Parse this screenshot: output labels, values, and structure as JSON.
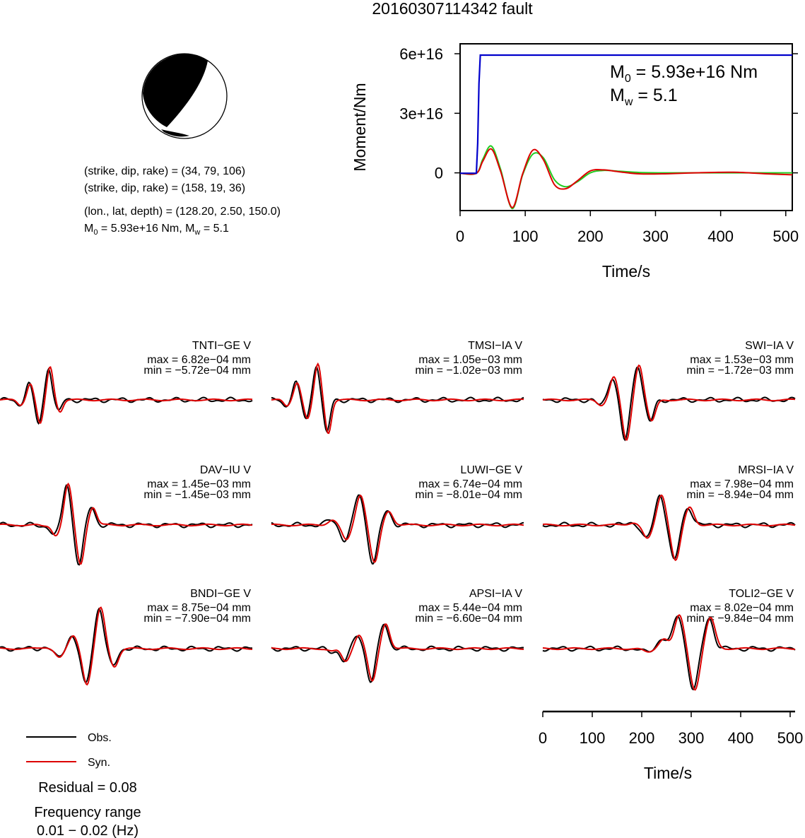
{
  "title": "20160307114342 fault",
  "colors": {
    "observed": "#000000",
    "synthetic": "#dd0000",
    "moment_rate": "#22cc22",
    "cumulative_moment": "#0000cc"
  },
  "mechanism": {
    "planes": [
      "(strike, dip, rake) = (34, 79, 106)",
      "(strike, dip, rake) = (158, 19, 36)"
    ],
    "location": "(lon., lat, depth) = (128.20, 2.50, 150.0)",
    "moment_line": {
      "m0_label": "M",
      "m0_sub": "0",
      "m0_value": " = 5.93e+16 Nm, M",
      "mw_sub": "w",
      "mw_value": " = 5.1"
    }
  },
  "moment_box": {
    "m0_label": "M",
    "m0_sub": "0",
    "m0_value": " = 5.93e+16 Nm",
    "mw_label": "M",
    "mw_sub": "w",
    "mw_value": " = 5.1"
  },
  "legend": {
    "obs": "Obs.",
    "syn": "Syn."
  },
  "residual": "Residual = 0.08",
  "frequency": {
    "label": "Frequency range",
    "value": "0.01 − 0.02 (Hz)"
  },
  "chart_data": [
    {
      "type": "line",
      "xlabel": "Time/s",
      "ylabel": "Moment/Nm",
      "xlim": [
        0,
        510
      ],
      "ylim": [
        -1.9e+16,
        6.5e+16
      ],
      "xticks": [
        0,
        100,
        200,
        300,
        400,
        500
      ],
      "yticks": [
        {
          "v": 0,
          "label": "0"
        },
        {
          "v": 3e+16,
          "label": "3e+16"
        },
        {
          "v": 6e+16,
          "label": "6e+16"
        }
      ],
      "series": [
        {
          "key": "cumulative_moment",
          "x": [
            0,
            25,
            27,
            29,
            31,
            510
          ],
          "y": [
            -200000000000000.0,
            -200000000000000.0,
            1.5e+16,
            4.5e+16,
            5.93e+16,
            5.93e+16
          ]
        },
        {
          "key": "moment_rate_a",
          "x": [
            0,
            25,
            35,
            48,
            62,
            80,
            96,
            112,
            128,
            145,
            162,
            180,
            200,
            220,
            245,
            275,
            310,
            360,
            420,
            470,
            510
          ],
          "y": [
            -200000000000000.0,
            -200000000000000.0,
            6000000000000000.0,
            1.2e+16,
            1000000000000000.0,
            -1.75e+16,
            -500000000000000.0,
            1.15e+16,
            6500000000000000.0,
            -6000000000000000.0,
            -8000000000000000.0,
            -4000000000000000.0,
            1000000000000000.0,
            1500000000000000.0,
            500000000000000.0,
            -500000000000000.0,
            -500000000000000.0,
            0.0,
            300000000000000.0,
            -500000000000000.0,
            -1000000000000000.0
          ]
        },
        {
          "key": "moment_rate_b",
          "x": [
            0,
            25,
            35,
            48,
            62,
            80,
            96,
            112,
            128,
            145,
            162,
            180,
            200,
            220,
            245,
            275,
            310,
            360,
            420,
            470,
            510
          ],
          "y": [
            -200000000000000.0,
            -200000000000000.0,
            7000000000000000.0,
            1.35e+16,
            2000000000000000.0,
            -1.8e+16,
            -1000000000000000.0,
            9500000000000000.0,
            7500000000000000.0,
            -3500000000000000.0,
            -7000000000000000.0,
            -4500000000000000.0,
            0.0,
            1200000000000000.0,
            800000000000000.0,
            200000000000000.0,
            0.0,
            0.0,
            0.0,
            0.0,
            0.0
          ]
        }
      ]
    },
    {
      "type": "line",
      "description_note": "waveform fits",
      "xlabel": "Time/s",
      "xlim": [
        0,
        510
      ],
      "xticks": [
        0,
        100,
        200,
        300,
        400,
        500
      ],
      "stations": [
        {
          "name": "TNTI−GE V",
          "max": "max = 6.82e−04 mm",
          "min": "min = −5.72e−04 mm"
        },
        {
          "name": "TMSI−IA V",
          "max": "max = 1.05e−03 mm",
          "min": "min = −1.02e−03 mm"
        },
        {
          "name": "SWI−IA V",
          "max": "max = 1.53e−03 mm",
          "min": "min = −1.72e−03 mm"
        },
        {
          "name": "DAV−IU V",
          "max": "max = 1.45e−03 mm",
          "min": "min = −1.45e−03 mm"
        },
        {
          "name": "LUWI−GE V",
          "max": "max = 6.74e−04 mm",
          "min": "min = −8.01e−04 mm"
        },
        {
          "name": "MRSI−IA V",
          "max": "max = 7.98e−04 mm",
          "min": "min = −8.94e−04 mm"
        },
        {
          "name": "BNDI−GE V",
          "max": "max = 8.75e−04 mm",
          "min": "min = −7.90e−04 mm"
        },
        {
          "name": "APSI−IA V",
          "max": "max = 5.44e−04 mm",
          "min": "min = −6.60e−04 mm"
        },
        {
          "name": "TOLI2−GE V",
          "max": "max = 8.02e−04 mm",
          "min": "min = −9.84e−04 mm"
        }
      ]
    }
  ]
}
